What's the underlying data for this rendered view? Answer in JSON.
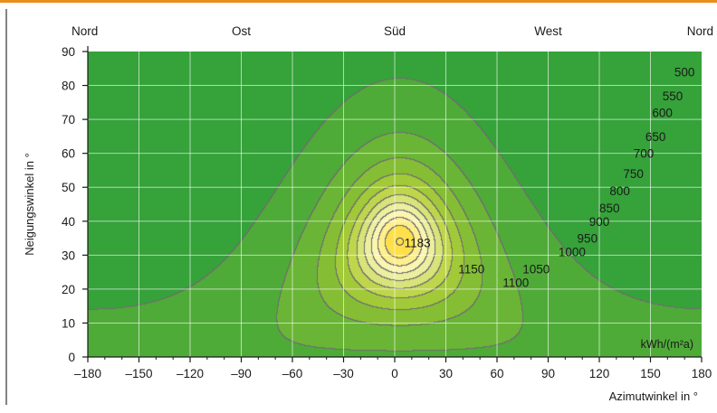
{
  "chart_data": {
    "type": "heatmap",
    "title": "",
    "xlabel": "Azimutwinkel in °",
    "ylabel": "Neigungswinkel in °",
    "unit_label": "kWh/(m²a)",
    "xlim": [
      -180,
      180
    ],
    "ylim": [
      0,
      90
    ],
    "x_ticks": [
      "–180",
      "–150",
      "–120",
      "–90",
      "–60",
      "–30",
      "0",
      "30",
      "60",
      "90",
      "120",
      "150",
      "180"
    ],
    "y_ticks": [
      "0",
      "10",
      "20",
      "30",
      "40",
      "50",
      "60",
      "70",
      "80",
      "90"
    ],
    "compass_labels": [
      {
        "label": "Nord",
        "azimuth": -180
      },
      {
        "label": "Ost",
        "azimuth": -90
      },
      {
        "label": "Süd",
        "azimuth": 0
      },
      {
        "label": "West",
        "azimuth": 90
      },
      {
        "label": "Nord",
        "azimuth": 180
      }
    ],
    "maximum": {
      "value": "1183",
      "azimuth": 3,
      "tilt": 34
    },
    "horizontal_value": 1050,
    "contour_levels": [
      500,
      550,
      600,
      650,
      700,
      750,
      800,
      850,
      900,
      950,
      1000,
      1050,
      1100,
      1150
    ],
    "contour_labels": [
      {
        "text": "500",
        "azimuth": 170,
        "tilt": 84
      },
      {
        "text": "550",
        "azimuth": 163,
        "tilt": 77
      },
      {
        "text": "600",
        "azimuth": 157,
        "tilt": 72
      },
      {
        "text": "650",
        "azimuth": 153,
        "tilt": 65
      },
      {
        "text": "700",
        "azimuth": 146,
        "tilt": 60
      },
      {
        "text": "750",
        "azimuth": 140,
        "tilt": 54
      },
      {
        "text": "800",
        "azimuth": 132,
        "tilt": 49
      },
      {
        "text": "850",
        "azimuth": 126,
        "tilt": 44
      },
      {
        "text": "900",
        "azimuth": 120,
        "tilt": 40
      },
      {
        "text": "950",
        "azimuth": 113,
        "tilt": 35
      },
      {
        "text": "1000",
        "azimuth": 104,
        "tilt": 31
      },
      {
        "text": "1050",
        "azimuth": 83,
        "tilt": 26
      },
      {
        "text": "1100",
        "azimuth": 71,
        "tilt": 22
      },
      {
        "text": "1150",
        "azimuth": 45,
        "tilt": 26
      }
    ],
    "colors": {
      "band_colors": [
        "#1f9a3c",
        "#36a23a",
        "#4fab38",
        "#6ab536",
        "#85be35",
        "#a2ca38",
        "#bfd64c",
        "#d8e37a",
        "#ecef9f",
        "#fbf5b2",
        "#feef8e",
        "#ffe04a",
        "#fecb1f",
        "#f9b413",
        "#f49a0b",
        "#ee8208"
      ],
      "contour_line": "#6e6e6e",
      "grid_line": "#ffffff",
      "top_bar": "#e98e1a",
      "axis": "#1a1a1a"
    }
  }
}
